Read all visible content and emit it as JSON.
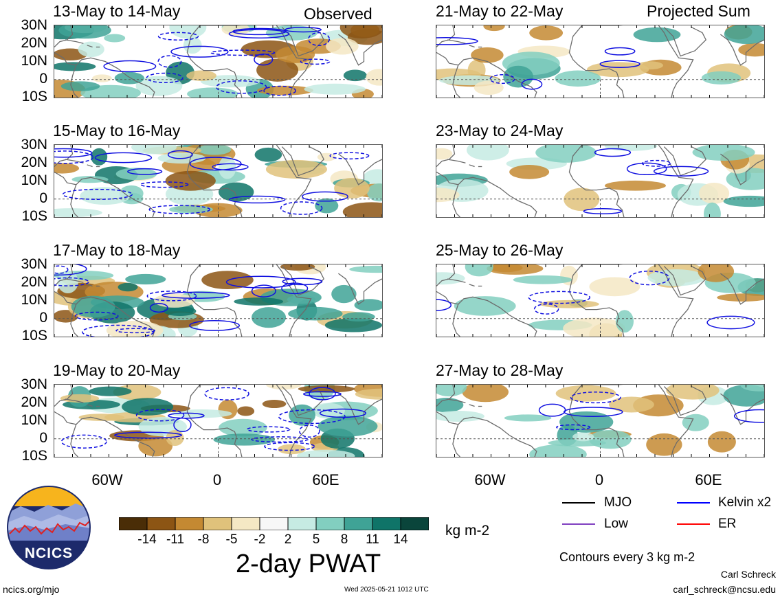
{
  "headers": {
    "left": "Observed",
    "right": "Projected Sum"
  },
  "panels_left": [
    {
      "title": "13-May to 14-May"
    },
    {
      "title": "15-May to 16-May"
    },
    {
      "title": "17-May to 18-May"
    },
    {
      "title": "19-May to 20-May"
    }
  ],
  "panels_right": [
    {
      "title": "21-May to 22-May"
    },
    {
      "title": "23-May to 24-May"
    },
    {
      "title": "25-May to 26-May"
    },
    {
      "title": "27-May to 28-May"
    }
  ],
  "lat_labels": [
    "30N",
    "20N",
    "10N",
    "0",
    "10S"
  ],
  "lon_labels": [
    "60W",
    "0",
    "60E"
  ],
  "colorbar": {
    "title": "2-day PWAT",
    "units": "kg m-2",
    "tick_labels": [
      "-14",
      "-11",
      "-8",
      "-5",
      "-2",
      "2",
      "5",
      "8",
      "11",
      "14"
    ],
    "colors": [
      "#4a2d07",
      "#8c5514",
      "#c48932",
      "#e0c27b",
      "#f5e8c4",
      "#f7f7f7",
      "#c6ebe3",
      "#82cfc0",
      "#3fa396",
      "#0f7468",
      "#0a453b"
    ]
  },
  "legend": {
    "items": [
      {
        "label": "MJO",
        "color": "#000000"
      },
      {
        "label": "Kelvin x2",
        "color": "#0000ff"
      },
      {
        "label": "Low",
        "color": "#8040c0"
      },
      {
        "label": "ER",
        "color": "#ff0000"
      }
    ],
    "contour_note": "Contours every 3 kg m-2"
  },
  "logo": {
    "text": "NCICS"
  },
  "footer": {
    "left": "ncics.org/mjo",
    "center": "Wed 2025-05-21 1012 UTC",
    "author": "Carl Schreck",
    "email": "carl_schreck@ncsu.edu"
  }
}
